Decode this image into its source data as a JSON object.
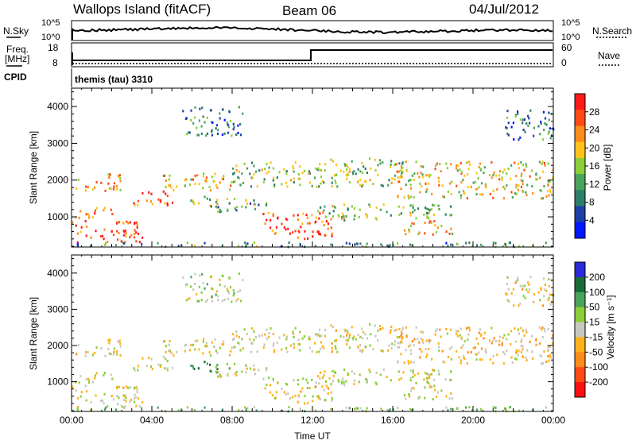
{
  "header": {
    "station": "Wallops Island (fitACF)",
    "beam": "Beam 06",
    "date": "04/Jul/2012"
  },
  "nsky_panel": {
    "left_label": "N.Sky",
    "left_ticks": [
      "10^5",
      "10^0"
    ],
    "right_label": "N.Search",
    "right_ticks": [
      "10^5",
      "10^0"
    ]
  },
  "freq_panel": {
    "left_label_1": "Freq.",
    "left_label_2": "[MHz]",
    "left_ticks": [
      "18",
      "8"
    ],
    "cpid_label": "CPID",
    "right_label": "Nave",
    "right_ticks": [
      "60",
      "0"
    ],
    "cpid_text": "themis (tau) 3310"
  },
  "colors": {
    "power_scale": [
      "#0018ff",
      "#1f3fa8",
      "#2e7d6a",
      "#4aa35c",
      "#8ccf3a",
      "#ffc21a",
      "#ff8c1a",
      "#ff4a14",
      "#ff1a1a"
    ],
    "velocity_scale": [
      "#2a2ad8",
      "#1a6a3a",
      "#4aa35c",
      "#8ccf3a",
      "#c8c8c0",
      "#ffb21a",
      "#ff8c1a",
      "#ff4a14",
      "#ff1010"
    ]
  },
  "chart_data": [
    {
      "type": "heatmap",
      "title": "",
      "quantity": "Power",
      "ylabel": "Slant Range [km]",
      "xlabel": "",
      "x_ticks": [
        "00:00",
        "04:00",
        "08:00",
        "12:00",
        "16:00",
        "20:00",
        "00:00"
      ],
      "xlim_hours": [
        0,
        24
      ],
      "ylim": [
        180,
        4500
      ],
      "y_ticks": [
        1000,
        2000,
        3000,
        4000
      ],
      "colorbar_label": "Power [dB]",
      "colorbar_ticks": [
        "28",
        "24",
        "20",
        "16",
        "12",
        "8",
        "4"
      ],
      "colorbar_range": [
        0,
        30
      ]
    },
    {
      "type": "heatmap",
      "title": "",
      "quantity": "Velocity",
      "ylabel": "Slant Range [km]",
      "xlabel": "Time UT",
      "x_ticks": [
        "00:00",
        "04:00",
        "08:00",
        "12:00",
        "16:00",
        "20:00",
        "00:00"
      ],
      "xlim_hours": [
        0,
        24
      ],
      "ylim": [
        180,
        4500
      ],
      "y_ticks": [
        1000,
        2000,
        3000,
        4000
      ],
      "colorbar_label": "Velocity [m s⁻¹]",
      "colorbar_ticks": [
        "200",
        "100",
        "50",
        "15",
        "-15",
        "-50",
        "-100",
        "-200"
      ],
      "colorbar_range": [
        -250,
        250
      ]
    }
  ],
  "echo_regions": [
    {
      "t0": 0.0,
      "t1": 3.5,
      "r0": 300,
      "r1": 900,
      "power": 26,
      "vel": -5
    },
    {
      "t0": 0.0,
      "t1": 2.0,
      "r0": 950,
      "r1": 1250,
      "power": 24,
      "vel": 5
    },
    {
      "t0": 0.2,
      "t1": 2.5,
      "r0": 1700,
      "r1": 2200,
      "power": 20,
      "vel": -10
    },
    {
      "t0": 3.0,
      "t1": 5.0,
      "r0": 1300,
      "r1": 1700,
      "power": 25,
      "vel": 0
    },
    {
      "t0": 4.5,
      "t1": 8.0,
      "r0": 1700,
      "r1": 2200,
      "power": 18,
      "vel": -5
    },
    {
      "t0": 5.8,
      "t1": 7.5,
      "r0": 1250,
      "r1": 1550,
      "power": 14,
      "vel": 120
    },
    {
      "t0": 7.0,
      "t1": 10.0,
      "r0": 1100,
      "r1": 1500,
      "power": 12,
      "vel": 10
    },
    {
      "t0": 8.0,
      "t1": 12.5,
      "r0": 1800,
      "r1": 2500,
      "power": 14,
      "vel": -5
    },
    {
      "t0": 9.5,
      "t1": 13.0,
      "r0": 400,
      "r1": 1100,
      "power": 26,
      "vel": -10
    },
    {
      "t0": 12.0,
      "t1": 19.0,
      "r0": 900,
      "r1": 1350,
      "power": 14,
      "vel": 5
    },
    {
      "t0": 12.5,
      "t1": 16.5,
      "r0": 1800,
      "r1": 2600,
      "power": 14,
      "vel": -10
    },
    {
      "t0": 16.5,
      "t1": 19.0,
      "r0": 500,
      "r1": 900,
      "power": 20,
      "vel": -5
    },
    {
      "t0": 16.0,
      "t1": 24.0,
      "r0": 1500,
      "r1": 2500,
      "power": 18,
      "vel": -20
    },
    {
      "t0": 5.5,
      "t1": 8.5,
      "r0": 3200,
      "r1": 4000,
      "power": 8,
      "vel": 20
    },
    {
      "t0": 21.5,
      "t1": 24.0,
      "r0": 3100,
      "r1": 3900,
      "power": 8,
      "vel": -10
    },
    {
      "t0": 0.0,
      "t1": 24.0,
      "r0": 180,
      "r1": 300,
      "power": 10,
      "vel": 40
    }
  ]
}
